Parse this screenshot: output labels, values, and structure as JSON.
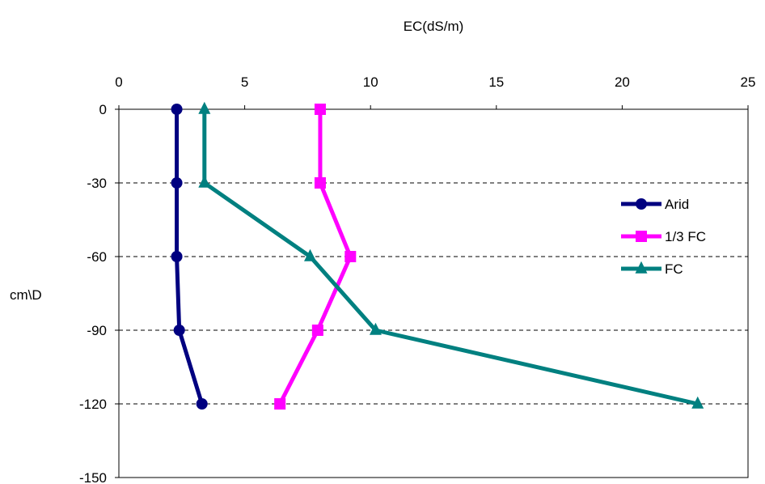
{
  "chart_data": {
    "type": "line",
    "title": "",
    "xlabel": "EC(dS/m)",
    "ylabel": "cm\\D",
    "xlim": [
      0,
      25
    ],
    "ylim": [
      -150,
      0
    ],
    "x_ticks": [
      0,
      5,
      10,
      15,
      20,
      25
    ],
    "y_ticks": [
      0,
      -30,
      -60,
      -90,
      -120,
      -150
    ],
    "x_axis_position": "top",
    "grid": "horizontal dashed",
    "legend_position": "right",
    "series": [
      {
        "name": "Arid",
        "color": "#000080",
        "marker": "circle",
        "x": [
          2.3,
          2.3,
          2.3,
          2.4,
          3.3
        ],
        "y": [
          0,
          -30,
          -60,
          -90,
          -120
        ]
      },
      {
        "name": "1/3 FC",
        "color": "#FF00FF",
        "marker": "square",
        "x": [
          8.0,
          8.0,
          9.2,
          7.9,
          6.4
        ],
        "y": [
          0,
          -30,
          -60,
          -90,
          -120
        ]
      },
      {
        "name": "FC",
        "color": "#008080",
        "marker": "triangle",
        "x": [
          3.4,
          3.4,
          7.6,
          10.2,
          23.0
        ],
        "y": [
          0,
          -30,
          -60,
          -90,
          -120
        ]
      }
    ]
  }
}
